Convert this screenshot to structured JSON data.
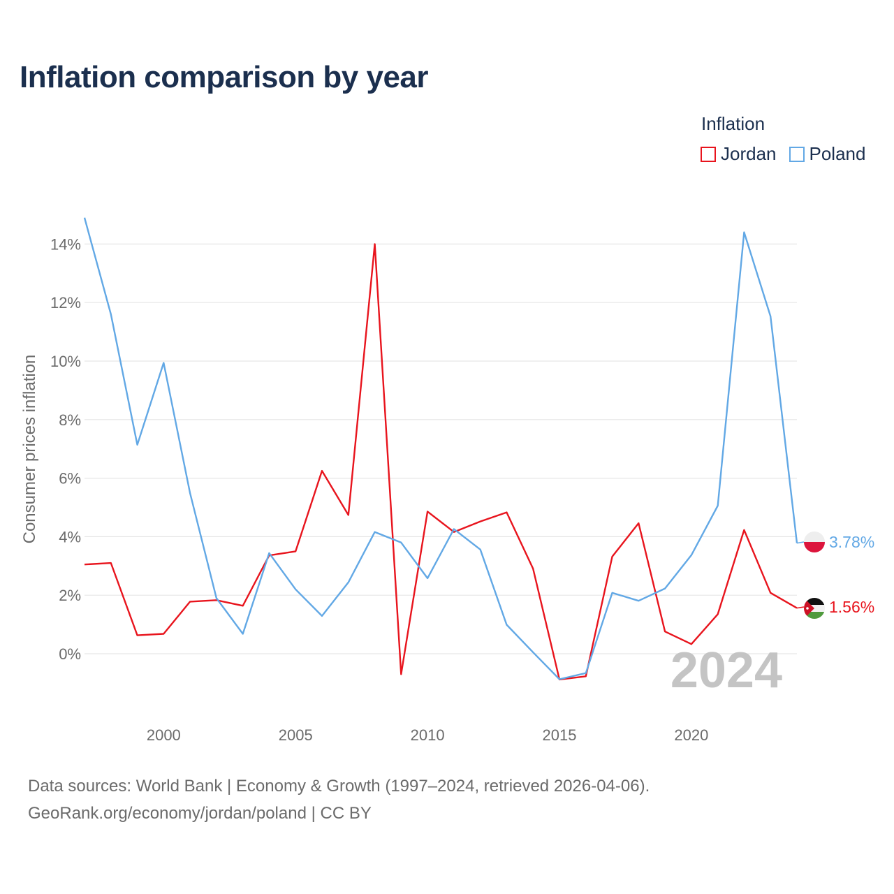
{
  "title": "Inflation comparison by year",
  "legend": {
    "title": "Inflation",
    "items": [
      {
        "name": "Jordan",
        "color": "#e8141d"
      },
      {
        "name": "Poland",
        "color": "#62a8e5"
      }
    ]
  },
  "chart_data": {
    "type": "line",
    "title": "Inflation comparison by year",
    "xlabel": "",
    "ylabel": "Consumer prices inflation",
    "x": [
      1997,
      1998,
      1999,
      2000,
      2001,
      2002,
      2003,
      2004,
      2005,
      2006,
      2007,
      2008,
      2009,
      2010,
      2011,
      2012,
      2013,
      2014,
      2015,
      2016,
      2017,
      2018,
      2019,
      2020,
      2021,
      2022,
      2023,
      2024
    ],
    "xlim": [
      1997,
      2024
    ],
    "ylim": [
      -1.8,
      15
    ],
    "xticks": [
      2000,
      2005,
      2010,
      2015,
      2020
    ],
    "yticks": [
      0,
      2,
      4,
      6,
      8,
      10,
      12,
      14
    ],
    "ytick_labels": [
      "0%",
      "2%",
      "4%",
      "6%",
      "8%",
      "10%",
      "12%",
      "14%"
    ],
    "grid": true,
    "watermark": "2024",
    "series": [
      {
        "name": "Jordan",
        "color": "#e8141d",
        "values": [
          3.05,
          3.1,
          0.63,
          0.68,
          1.78,
          1.83,
          1.64,
          3.36,
          3.5,
          6.25,
          4.74,
          14.0,
          -0.7,
          4.86,
          4.16,
          4.52,
          4.83,
          2.91,
          -0.88,
          -0.77,
          3.32,
          4.46,
          0.76,
          0.33,
          1.35,
          4.23,
          2.08,
          1.56
        ],
        "end_label": "1.56%",
        "flag": "jordan-flag"
      },
      {
        "name": "Poland",
        "color": "#62a8e5",
        "values": [
          14.9,
          11.6,
          7.14,
          9.94,
          5.49,
          1.9,
          0.68,
          3.44,
          2.2,
          1.29,
          2.44,
          4.16,
          3.8,
          2.58,
          4.26,
          3.56,
          0.99,
          0.05,
          -0.87,
          -0.66,
          2.08,
          1.81,
          2.23,
          3.37,
          5.06,
          14.4,
          11.53,
          3.78
        ],
        "end_label": "3.78%",
        "flag": "poland-flag"
      }
    ]
  },
  "footer": {
    "sources": "Data sources: World Bank | Economy & Growth (1997–2024, retrieved 2026-04-06).",
    "credit": "GeoRank.org/economy/jordan/poland | CC BY"
  }
}
